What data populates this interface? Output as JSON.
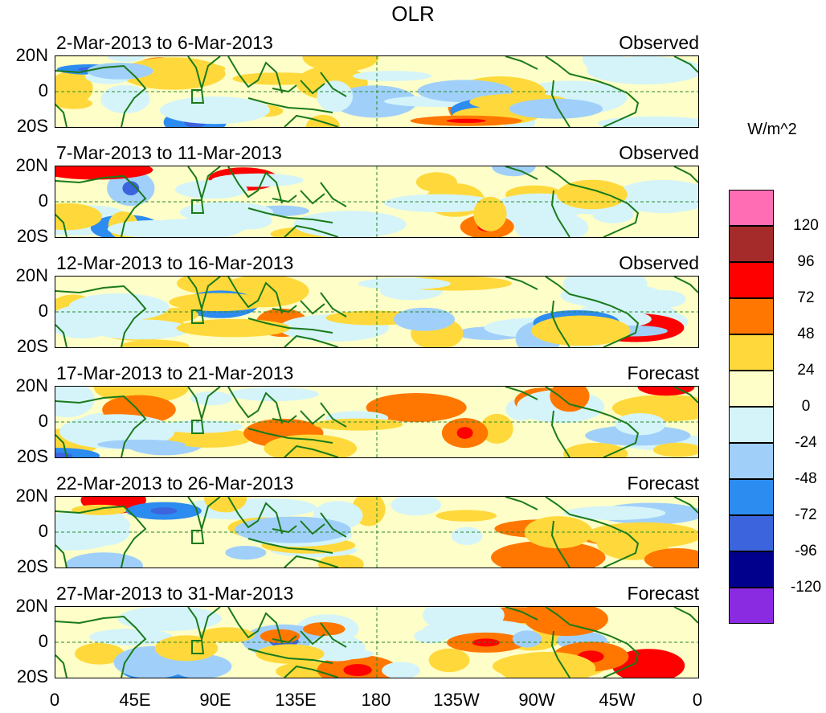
{
  "title": "OLR",
  "units": "W/m^2",
  "lat_labels": [
    "20N",
    "0",
    "20S"
  ],
  "lon_labels": [
    "0",
    "45E",
    "90E",
    "135E",
    "180",
    "135W",
    "90W",
    "45W",
    "0"
  ],
  "panels": [
    {
      "period": "2-Mar-2013 to 6-Mar-2013",
      "type": "Observed"
    },
    {
      "period": "7-Mar-2013 to 11-Mar-2013",
      "type": "Observed"
    },
    {
      "period": "12-Mar-2013 to 16-Mar-2013",
      "type": "Observed"
    },
    {
      "period": "17-Mar-2013 to 21-Mar-2013",
      "type": "Forecast"
    },
    {
      "period": "22-Mar-2013 to 26-Mar-2013",
      "type": "Forecast"
    },
    {
      "period": "27-Mar-2013 to 31-Mar-2013",
      "type": "Forecast"
    }
  ],
  "colorbar": {
    "labels": [
      "120",
      "96",
      "72",
      "48",
      "24",
      "0",
      "-24",
      "-48",
      "-72",
      "-96",
      "-120"
    ],
    "colors": [
      "#ff6eb4",
      "#a52a2a",
      "#ff0000",
      "#ff7700",
      "#ffd93b",
      "#fefec8",
      "#d4f4fa",
      "#a0d0fa",
      "#2d8cf0",
      "#3c64dc",
      "#00008c",
      "#8a2be2"
    ]
  }
}
